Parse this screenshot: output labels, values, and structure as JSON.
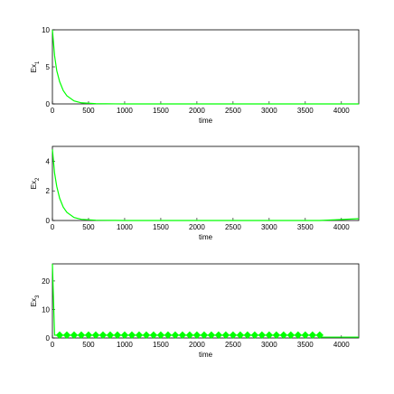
{
  "chart_data": [
    {
      "type": "line",
      "ylabel": "Ex",
      "ylabel_sub": "1",
      "xlabel": "time",
      "xlim": [
        0,
        4240
      ],
      "xticks": [
        0,
        500,
        1000,
        1500,
        2000,
        2500,
        3000,
        3500,
        4000
      ],
      "ylim": [
        0,
        10
      ],
      "yticks": [
        0,
        5,
        10
      ],
      "series": [
        {
          "color": "#00ff00",
          "x": [
            0,
            30,
            60,
            100,
            150,
            200,
            300,
            400,
            600,
            1000,
            2000,
            3000,
            4240
          ],
          "values": [
            10,
            6.5,
            4.5,
            3,
            1.8,
            1.1,
            0.4,
            0.15,
            0.03,
            0,
            0,
            0,
            0
          ]
        }
      ]
    },
    {
      "type": "line",
      "ylabel": "Ex",
      "ylabel_sub": "2",
      "xlabel": "time",
      "xlim": [
        0,
        4240
      ],
      "xticks": [
        0,
        500,
        1000,
        1500,
        2000,
        2500,
        3000,
        3500,
        4000
      ],
      "ylim": [
        0,
        5
      ],
      "yticks": [
        0,
        2,
        4
      ],
      "series": [
        {
          "color": "#00ff00",
          "x": [
            0,
            30,
            60,
            100,
            150,
            200,
            300,
            400,
            600,
            1000,
            2000,
            3000,
            3700,
            4240
          ],
          "values": [
            4.8,
            3.2,
            2.3,
            1.5,
            0.9,
            0.55,
            0.2,
            0.08,
            0.02,
            0,
            0,
            0,
            0,
            0.12
          ]
        }
      ]
    },
    {
      "type": "line",
      "ylabel": "Ex",
      "ylabel_sub": "3",
      "xlabel": "time",
      "xlim": [
        0,
        4240
      ],
      "xticks": [
        0,
        500,
        1000,
        1500,
        2000,
        2500,
        3000,
        3500,
        4000
      ],
      "ylim": [
        0,
        26
      ],
      "yticks": [
        0,
        10,
        20
      ],
      "series": [
        {
          "color": "#00ff00",
          "x": [
            0,
            30,
            100,
            3700,
            3700,
            4240
          ],
          "values": [
            26,
            1,
            1,
            1,
            0.3,
            0.3
          ]
        },
        {
          "color": "#00ff00",
          "marker": "diamond",
          "x": [
            100,
            200,
            300,
            400,
            500,
            600,
            700,
            800,
            900,
            1000,
            1100,
            1200,
            1300,
            1400,
            1500,
            1600,
            1700,
            1800,
            1900,
            2000,
            2100,
            2200,
            2300,
            2400,
            2500,
            2600,
            2700,
            2800,
            2900,
            3000,
            3100,
            3200,
            3300,
            3400,
            3500,
            3600,
            3700
          ],
          "values": [
            1,
            1,
            1,
            1,
            1,
            1,
            1,
            1,
            1,
            1,
            1,
            1,
            1,
            1,
            1,
            1,
            1,
            1,
            1,
            1,
            1,
            1,
            1,
            1,
            1,
            1,
            1,
            1,
            1,
            1,
            1,
            1,
            1,
            1,
            1,
            1,
            1
          ]
        }
      ]
    }
  ]
}
